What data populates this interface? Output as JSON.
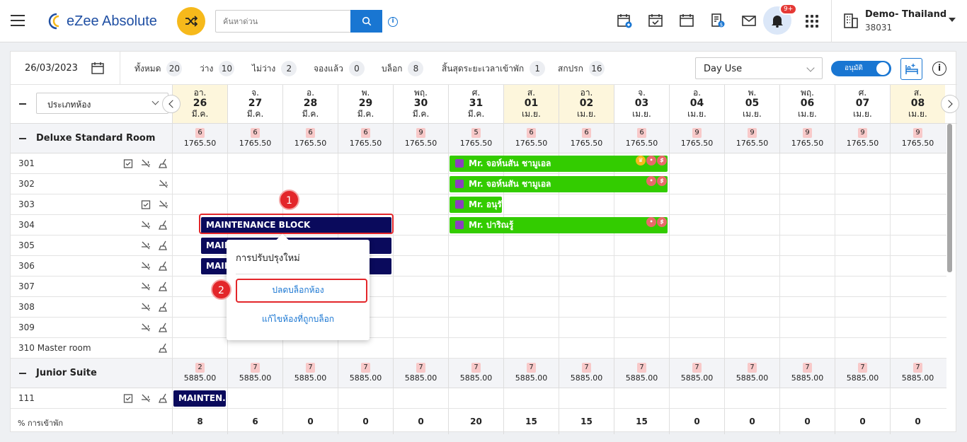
{
  "header": {
    "app_name": "eZee Absolute",
    "search_placeholder": "ค้นหาด่วน",
    "notification_count": "9+",
    "property_name": "Demo- Thailand",
    "property_id": "38031"
  },
  "toolbar": {
    "date": "26/03/2023",
    "stats": [
      {
        "label": "ทั้งหมด",
        "value": "20"
      },
      {
        "label": "ว่าง",
        "value": "10"
      },
      {
        "label": "ไม่ว่าง",
        "value": "2"
      },
      {
        "label": "จองแล้ว",
        "value": "0"
      },
      {
        "label": "บล็อก",
        "value": "8"
      },
      {
        "label": "สิ้นสุดระยะเวลาเข้าพัก",
        "value": "1"
      },
      {
        "label": "สกปรก",
        "value": "16"
      }
    ],
    "view_select": "Day Use",
    "toggle_label": "อนุมัติ"
  },
  "grid": {
    "room_type_select": "ประเภทห้อง",
    "days": [
      {
        "dow": "อา.",
        "d": "26",
        "m": "มี.ค."
      },
      {
        "dow": "จ.",
        "d": "27",
        "m": "มี.ค."
      },
      {
        "dow": "อ.",
        "d": "28",
        "m": "มี.ค."
      },
      {
        "dow": "พ.",
        "d": "29",
        "m": "มี.ค."
      },
      {
        "dow": "พฤ.",
        "d": "30",
        "m": "มี.ค."
      },
      {
        "dow": "ศ.",
        "d": "31",
        "m": "มี.ค."
      },
      {
        "dow": "ส.",
        "d": "01",
        "m": "เม.ย."
      },
      {
        "dow": "อา.",
        "d": "02",
        "m": "เม.ย."
      },
      {
        "dow": "จ.",
        "d": "03",
        "m": "เม.ย."
      },
      {
        "dow": "อ.",
        "d": "04",
        "m": "เม.ย."
      },
      {
        "dow": "พ.",
        "d": "05",
        "m": "เม.ย."
      },
      {
        "dow": "พฤ.",
        "d": "06",
        "m": "เม.ย."
      },
      {
        "dow": "ศ.",
        "d": "07",
        "m": "เม.ย."
      },
      {
        "dow": "ส.",
        "d": "08",
        "m": "เม.ย."
      }
    ],
    "sections": [
      {
        "name": "Deluxe Standard Room",
        "avail": [
          "6",
          "6",
          "6",
          "6",
          "9",
          "5",
          "6",
          "6",
          "6",
          "9",
          "9",
          "9",
          "9",
          "9"
        ],
        "price": "1765.50",
        "rooms": [
          "301",
          "302",
          "303",
          "304",
          "305",
          "306",
          "307",
          "308",
          "309",
          "310 Master room"
        ]
      },
      {
        "name": "Junior Suite",
        "avail": [
          "2",
          "7",
          "7",
          "7",
          "7",
          "7",
          "7",
          "7",
          "7",
          "7",
          "7",
          "7",
          "7",
          "7"
        ],
        "price": "5885.00",
        "rooms": [
          "111"
        ]
      }
    ],
    "bookings": [
      {
        "room": "301",
        "guest": "Mr. จอห์นสัน ชามูเอล"
      },
      {
        "room": "302",
        "guest": "Mr. จอห์นสัน ชามูเอล"
      },
      {
        "room": "303",
        "guest": "Mr. อนุรั..."
      },
      {
        "room": "304",
        "guest": "Mr. ปาริณรู้"
      }
    ],
    "blocks": {
      "b304": "MAINTENANCE BLOCK",
      "b305": "MAINT",
      "b306": "MAINT",
      "b111": "MAINTEN..."
    },
    "occupancy_label": "% การเข้าพัก",
    "occupancy": [
      "8",
      "6",
      "0",
      "0",
      "0",
      "20",
      "15",
      "15",
      "15",
      "0",
      "0",
      "0",
      "0",
      "0"
    ]
  },
  "popup": {
    "title": "การปรับปรุงใหม่",
    "option_unblock": "ปลดบล็อกห้อง",
    "option_edit": "แก้ไขห้องที่ถูกบล็อก"
  },
  "callouts": [
    "1",
    "2"
  ]
}
